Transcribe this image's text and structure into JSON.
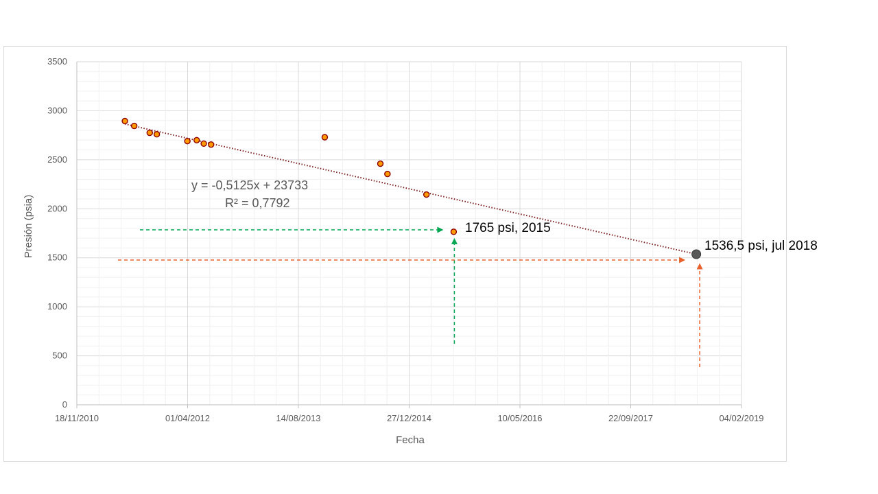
{
  "chart_data": {
    "type": "scatter",
    "xlabel": "Fecha",
    "ylabel": "Presión (psia)",
    "ylim": [
      0,
      3500
    ],
    "yticks": [
      "0",
      "500",
      "1000",
      "1500",
      "2000",
      "2500",
      "3000",
      "3500"
    ],
    "xlim": [
      "18/11/2010",
      "04/02/2019"
    ],
    "xticks": [
      "18/11/2010",
      "01/04/2012",
      "14/08/2013",
      "27/12/2014",
      "10/05/2016",
      "22/09/2017",
      "04/02/2019"
    ],
    "grid": true,
    "series": [
      {
        "color": "#ff9900",
        "points": [
          {
            "x": "2011-06-23",
            "y": 2895
          },
          {
            "x": "2011-08-04",
            "y": 2845
          },
          {
            "x": "2011-10-13",
            "y": 2775
          },
          {
            "x": "2011-11-14",
            "y": 2760
          },
          {
            "x": "2012-03-31",
            "y": 2690
          },
          {
            "x": "2012-05-12",
            "y": 2700
          },
          {
            "x": "2012-06-13",
            "y": 2665
          },
          {
            "x": "2012-07-16",
            "y": 2655
          },
          {
            "x": "2013-12-11",
            "y": 2730
          },
          {
            "x": "2014-08-19",
            "y": 2460
          },
          {
            "x": "2014-09-20",
            "y": 2355
          },
          {
            "x": "2015-03-15",
            "y": 2145
          },
          {
            "x": "2015-07-16",
            "y": 1765
          }
        ]
      },
      {
        "color": "#595959",
        "points": [
          {
            "x": "2018-07-15",
            "y": 1536.5
          }
        ]
      }
    ],
    "trendline": {
      "from": {
        "x": "2011-06-23",
        "y": 2865
      },
      "to": {
        "x": "2018-07-15",
        "y": 1536.5
      },
      "color": "#7b1f1f"
    },
    "annotations": [
      {
        "text": "y = -0,5125x + 23733"
      },
      {
        "text": "R² = 0,7792"
      },
      {
        "text": "1765 psi, 2015"
      },
      {
        "text": "1536,5 psi, jul 2018"
      }
    ],
    "arrow_colors": {
      "green": "#00a650",
      "orange": "#e8602c"
    }
  }
}
